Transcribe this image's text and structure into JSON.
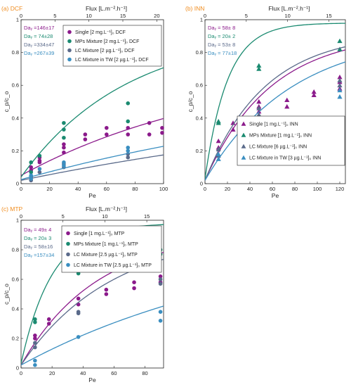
{
  "colors": {
    "purple": "#8b1a8b",
    "teal": "#1a8a70",
    "slate": "#5a6a8a",
    "sky": "#3a8ec0",
    "orange": "#f08c1e"
  },
  "chart_data": [
    {
      "type": "scatter",
      "panel_label": "(a) DCF",
      "xlabel": "Pe",
      "ylabel": "c_p/c_o",
      "top_xlabel": "Flux [L.m⁻².h⁻¹]",
      "xlim": [
        0,
        100
      ],
      "ylim": [
        0,
        1
      ],
      "x_ticks": [
        0,
        20,
        40,
        60,
        80,
        100
      ],
      "y_ticks": [
        0,
        0.2,
        0.4,
        0.6,
        0.8,
        1
      ],
      "top_xlim": [
        0,
        21
      ],
      "top_ticks": [
        0,
        5,
        10,
        15,
        20
      ],
      "marker": "circle",
      "legend_position": "top-right",
      "series": [
        {
          "name": "Single [2 mg.L⁻¹]₀ DCF",
          "color_key": "purple",
          "da": "Daᵧ =146±17",
          "fit": {
            "a": 146,
            "b": 0.05,
            "c": 0.7
          },
          "points": [
            [
              7,
              0.08
            ],
            [
              7,
              0.1
            ],
            [
              13,
              0.13
            ],
            [
              13,
              0.14
            ],
            [
              13,
              0.16
            ],
            [
              30,
              0.22
            ],
            [
              30,
              0.24
            ],
            [
              30,
              0.19
            ],
            [
              45,
              0.27
            ],
            [
              45,
              0.3
            ],
            [
              60,
              0.3
            ],
            [
              60,
              0.34
            ],
            [
              75,
              0.3
            ],
            [
              75,
              0.34
            ],
            [
              90,
              0.3
            ],
            [
              90,
              0.37
            ],
            [
              99,
              0.31
            ],
            [
              99,
              0.34
            ]
          ]
        },
        {
          "name": "MPs Mixture [2 mg.L⁻¹]₀ DCF",
          "color_key": "teal",
          "da": "Daᵧ = 74±28",
          "fit": {
            "a": 74,
            "b": 0.04,
            "c": 0.9
          },
          "points": [
            [
              7,
              0.13
            ],
            [
              7,
              0.07
            ],
            [
              13,
              0.17
            ],
            [
              30,
              0.33
            ],
            [
              30,
              0.37
            ],
            [
              30,
              0.28
            ],
            [
              75,
              0.38
            ],
            [
              75,
              0.49
            ]
          ]
        },
        {
          "name": "LC Mixture [2 µg.L⁻¹]₀ DCF",
          "color_key": "slate",
          "da": "Daᵧ =334±47",
          "fit": {
            "a": 334,
            "b": 0.02,
            "c": 0.6
          },
          "points": [
            [
              7,
              0.02
            ],
            [
              7,
              0.04
            ],
            [
              13,
              0.07
            ],
            [
              30,
              0.1
            ],
            [
              30,
              0.12
            ],
            [
              75,
              0.16
            ],
            [
              75,
              0.18
            ]
          ]
        },
        {
          "name": "LC Mixture in TW [2 µg.L⁻¹]₀ DCF",
          "color_key": "sky",
          "da": "Daᵧ =267±39",
          "fit": {
            "a": 267,
            "b": 0.025,
            "c": 0.65
          },
          "points": [
            [
              7,
              0.03
            ],
            [
              7,
              0.05
            ],
            [
              13,
              0.09
            ],
            [
              30,
              0.11
            ],
            [
              30,
              0.13
            ],
            [
              75,
              0.2
            ],
            [
              75,
              0.22
            ]
          ]
        }
      ]
    },
    {
      "type": "scatter",
      "panel_label": "(b) INN",
      "xlabel": "Pe",
      "ylabel": "c_p/c_o",
      "top_xlabel": "Flux [L.m⁻².h⁻¹]",
      "xlim": [
        0,
        125
      ],
      "ylim": [
        0,
        1
      ],
      "x_ticks": [
        0,
        20,
        40,
        60,
        80,
        100,
        120
      ],
      "y_ticks": [
        0,
        0.2,
        0.4,
        0.6,
        0.8,
        1
      ],
      "top_xlim": [
        0,
        17
      ],
      "top_ticks": [
        0,
        5,
        10,
        15
      ],
      "marker": "triangle",
      "legend_position": "bottom-right",
      "series": [
        {
          "name": "Single [1 mg.L⁻¹]₀ INN",
          "color_key": "purple",
          "da": "Daᵧ = 58± 8",
          "fit": {
            "a": 58,
            "b": 0.02,
            "c": 0.9
          },
          "points": [
            [
              12,
              0.22
            ],
            [
              12,
              0.26
            ],
            [
              25,
              0.33
            ],
            [
              25,
              0.37
            ],
            [
              48,
              0.44
            ],
            [
              48,
              0.47
            ],
            [
              48,
              0.5
            ],
            [
              73,
              0.47
            ],
            [
              73,
              0.51
            ],
            [
              97,
              0.54
            ],
            [
              97,
              0.56
            ],
            [
              120,
              0.58
            ],
            [
              120,
              0.62
            ],
            [
              120,
              0.65
            ]
          ]
        },
        {
          "name": "MPs Mixture [1 mg.L⁻¹]₀ INN",
          "color_key": "teal",
          "da": "Daᵧ = 20± 2",
          "fit": {
            "a": 20,
            "b": 0.03,
            "c": 0.95
          },
          "points": [
            [
              12,
              0.37
            ],
            [
              12,
              0.38
            ],
            [
              48,
              0.7
            ],
            [
              48,
              0.72
            ],
            [
              120,
              0.82
            ],
            [
              120,
              0.87
            ]
          ]
        },
        {
          "name": "LC Mixture [6 µg.L⁻¹]₀ INN",
          "color_key": "slate",
          "da": "Daᵧ = 53± 8",
          "fit": {
            "a": 53,
            "b": 0.02,
            "c": 0.9
          },
          "points": [
            [
              12,
              0.17
            ],
            [
              12,
              0.21
            ],
            [
              48,
              0.42
            ],
            [
              48,
              0.46
            ],
            [
              120,
              0.6
            ],
            [
              120,
              0.63
            ]
          ]
        },
        {
          "name": "LC Mixture in TW [3 µg.L⁻¹]₀ INN",
          "color_key": "sky",
          "da": "Daᵧ = 77±18",
          "fit": {
            "a": 77,
            "b": 0.02,
            "c": 0.9
          },
          "points": [
            [
              12,
              0.15
            ],
            [
              12,
              0.18
            ],
            [
              48,
              0.37
            ],
            [
              48,
              0.4
            ],
            [
              120,
              0.53
            ],
            [
              120,
              0.57
            ]
          ]
        }
      ]
    },
    {
      "type": "scatter",
      "panel_label": "(c) MTP",
      "xlabel": "Pe",
      "ylabel": "c_p/c_o",
      "top_xlabel": "Flux [L.m⁻².h⁻¹]",
      "xlim": [
        0,
        92
      ],
      "ylim": [
        0,
        1
      ],
      "x_ticks": [
        0,
        20,
        40,
        60,
        80
      ],
      "y_ticks": [
        0,
        0.2,
        0.4,
        0.6,
        0.8,
        1
      ],
      "top_xlim": [
        0,
        17
      ],
      "top_ticks": [
        0,
        5,
        10,
        15
      ],
      "marker": "circle",
      "legend_position": "top-right",
      "series": [
        {
          "name": "Single [1 mg.L⁻¹]₀ MTP",
          "color_key": "purple",
          "da": "Daᵧ = 49± 4",
          "fit": {
            "a": 49,
            "b": 0.02,
            "c": 0.9
          },
          "points": [
            [
              9,
              0.2
            ],
            [
              9,
              0.22
            ],
            [
              18,
              0.3
            ],
            [
              18,
              0.33
            ],
            [
              37,
              0.43
            ],
            [
              37,
              0.47
            ],
            [
              55,
              0.5
            ],
            [
              55,
              0.53
            ],
            [
              73,
              0.54
            ],
            [
              73,
              0.58
            ],
            [
              90,
              0.58
            ],
            [
              90,
              0.62
            ]
          ]
        },
        {
          "name": "MPs Mixture [1 mg.L⁻¹]₀ MTP",
          "color_key": "teal",
          "da": "Daᵧ = 20± 3",
          "fit": {
            "a": 20,
            "b": 0.03,
            "c": 0.95
          },
          "points": [
            [
              9,
              0.31
            ],
            [
              9,
              0.33
            ],
            [
              37,
              0.64
            ],
            [
              37,
              0.66
            ],
            [
              90,
              0.77
            ],
            [
              90,
              0.8
            ]
          ]
        },
        {
          "name": "LC Mixture [2.5 µg.L⁻¹]₀ MTP",
          "color_key": "slate",
          "da": "Daᵧ = 58±16",
          "fit": {
            "a": 58,
            "b": 0.02,
            "c": 0.9
          },
          "points": [
            [
              9,
              0.14
            ],
            [
              9,
              0.17
            ],
            [
              37,
              0.37
            ],
            [
              37,
              0.38
            ],
            [
              90,
              0.57
            ],
            [
              90,
              0.6
            ]
          ]
        },
        {
          "name": "LC Mixture in TW [2.5 µg.L⁻¹]₀ MTP",
          "color_key": "sky",
          "da": "Daᵧ =157±34",
          "fit": {
            "a": 157,
            "b": 0.02,
            "c": 0.9
          },
          "points": [
            [
              9,
              0.02
            ],
            [
              9,
              0.05
            ],
            [
              37,
              0.21
            ],
            [
              90,
              0.32
            ],
            [
              90,
              0.38
            ]
          ]
        }
      ]
    }
  ]
}
